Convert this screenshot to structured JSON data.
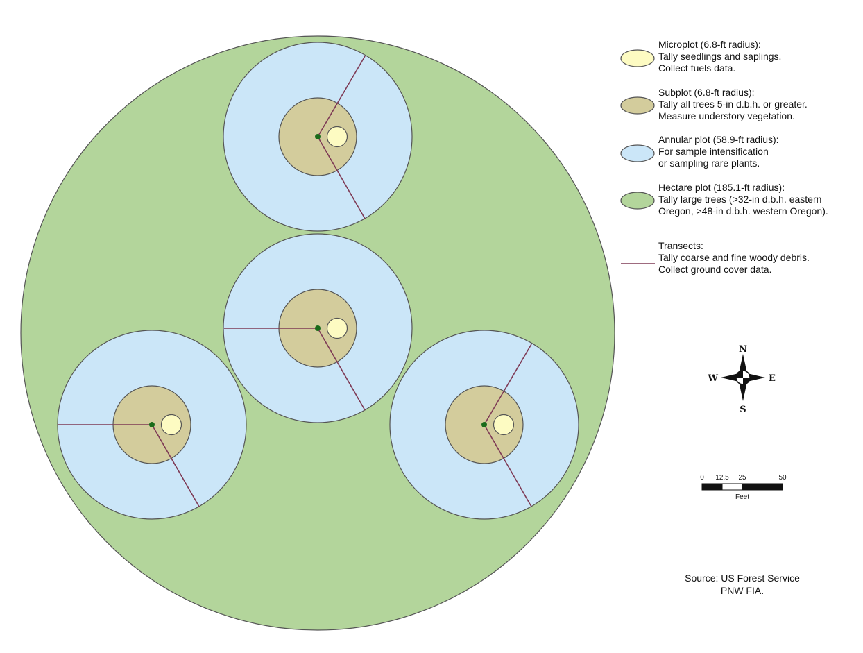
{
  "colors": {
    "hectare_fill": "#b3d59b",
    "annular_fill": "#cbe6f8",
    "subplot_fill": "#d3cc9c",
    "microplot_fill": "#fdfbc2",
    "transect": "#7e3a55",
    "center": "#1a6b1a",
    "outline": "#555555"
  },
  "legend": [
    {
      "key": "microplot",
      "title": "Microplot (6.8-ft radius):",
      "lines": [
        "Tally seedlings and saplings.",
        "Collect fuels data."
      ]
    },
    {
      "key": "subplot",
      "title": "Subplot (6.8-ft radius):",
      "lines": [
        "Tally all trees 5-in d.b.h. or greater.",
        "Measure understory vegetation."
      ]
    },
    {
      "key": "annular",
      "title": "Annular plot (58.9-ft radius):",
      "lines": [
        "For sample intensification",
        "or sampling rare plants."
      ]
    },
    {
      "key": "hectare",
      "title": "Hectare plot (185.1-ft radius):",
      "lines": [
        "Tally large trees (>32-in d.b.h. eastern",
        "Oregon, >48-in d.b.h. western Oregon)."
      ]
    },
    {
      "key": "transects",
      "title": "Transects:",
      "lines": [
        "Tally coarse and fine woody debris.",
        "Collect ground cover data."
      ]
    }
  ],
  "compass": {
    "n": "N",
    "s": "S",
    "e": "E",
    "w": "W"
  },
  "scale": {
    "ticks": [
      "0",
      "12.5",
      "25",
      "50"
    ],
    "unit": "Feet"
  },
  "source": {
    "line1": "Source: US Forest Service",
    "line2": "PNW FIA."
  }
}
